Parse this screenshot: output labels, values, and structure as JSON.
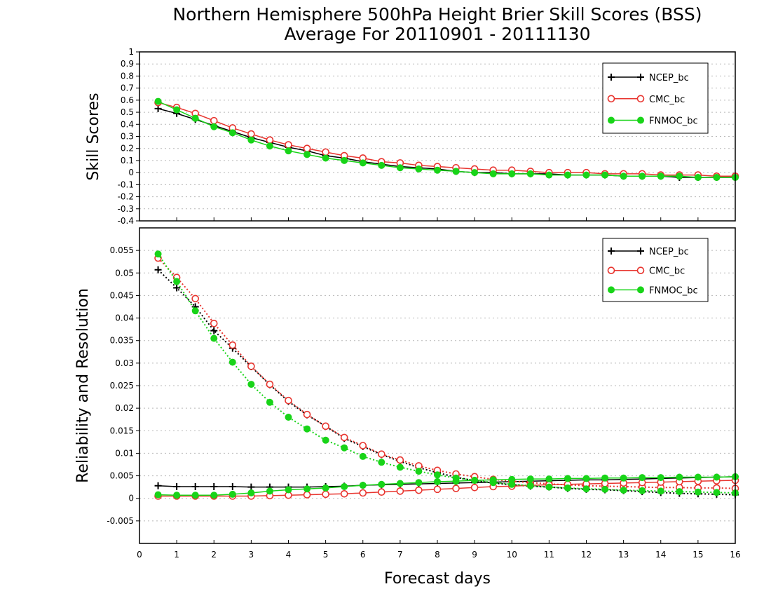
{
  "title": {
    "line1": "Northern Hemisphere 500hPa Height Brier Skill Scores (BSS)",
    "line2": "Average For 20110901 - 20111130"
  },
  "colors": {
    "NCEP_bc": "#000000",
    "CMC_bc": "#e8352f",
    "FNMOC_bc": "#18d418",
    "grid": "#b8b8b8"
  },
  "chart_data": [
    {
      "type": "line",
      "panel": "top",
      "ylabel": "Skill Scores",
      "xlabel": "",
      "xlim": [
        0,
        16
      ],
      "ylim": [
        -0.4,
        1
      ],
      "yticks": [
        -0.4,
        -0.3,
        -0.2,
        -0.1,
        0,
        0.1,
        0.2,
        0.3,
        0.4,
        0.5,
        0.6,
        0.7,
        0.8,
        0.9,
        1
      ],
      "ytick_labels": [
        "-0.4",
        "-0.3",
        "-0.2",
        "-0.1",
        "0",
        "0.1",
        "0.2",
        "0.3",
        "0.4",
        "0.5",
        "0.6",
        "0.7",
        "0.8",
        "0.9",
        "1"
      ],
      "grid": true,
      "legend_position": "top-right",
      "x": [
        0.5,
        1,
        1.5,
        2,
        2.5,
        3,
        3.5,
        4,
        4.5,
        5,
        5.5,
        6,
        6.5,
        7,
        7.5,
        8,
        8.5,
        9,
        9.5,
        10,
        10.5,
        11,
        11.5,
        12,
        12.5,
        13,
        13.5,
        14,
        14.5,
        15,
        15.5,
        16
      ],
      "series": [
        {
          "name": "NCEP_bc",
          "marker": "plus",
          "linestyle": "solid",
          "values": [
            0.53,
            0.49,
            0.44,
            0.39,
            0.34,
            0.29,
            0.25,
            0.21,
            0.18,
            0.14,
            0.12,
            0.09,
            0.07,
            0.05,
            0.04,
            0.03,
            0.01,
            0.0,
            0.0,
            -0.01,
            -0.01,
            -0.01,
            -0.02,
            -0.02,
            -0.02,
            -0.03,
            -0.03,
            -0.03,
            -0.04,
            -0.04,
            -0.04,
            -0.04
          ]
        },
        {
          "name": "CMC_bc",
          "marker": "open-circle",
          "linestyle": "solid",
          "values": [
            0.58,
            0.54,
            0.49,
            0.43,
            0.37,
            0.32,
            0.27,
            0.23,
            0.2,
            0.17,
            0.14,
            0.12,
            0.09,
            0.08,
            0.06,
            0.05,
            0.04,
            0.03,
            0.02,
            0.02,
            0.01,
            0.0,
            0.0,
            0.0,
            -0.01,
            -0.01,
            -0.01,
            -0.02,
            -0.02,
            -0.02,
            -0.03,
            -0.03
          ]
        },
        {
          "name": "FNMOC_bc",
          "marker": "filled-circle",
          "linestyle": "solid",
          "values": [
            0.59,
            0.52,
            0.45,
            0.38,
            0.33,
            0.27,
            0.22,
            0.18,
            0.15,
            0.12,
            0.1,
            0.08,
            0.06,
            0.04,
            0.03,
            0.02,
            0.01,
            0.0,
            -0.01,
            -0.01,
            -0.01,
            -0.02,
            -0.02,
            -0.02,
            -0.02,
            -0.03,
            -0.03,
            -0.03,
            -0.03,
            -0.04,
            -0.04,
            -0.04
          ]
        }
      ]
    },
    {
      "type": "line",
      "panel": "bottom",
      "ylabel": "Reliability and Resolution",
      "xlabel": "Forecast days",
      "xlim": [
        0,
        16
      ],
      "ylim": [
        -0.01,
        0.06
      ],
      "yticks": [
        -0.005,
        0,
        0.005,
        0.01,
        0.015,
        0.02,
        0.025,
        0.03,
        0.035,
        0.04,
        0.045,
        0.05,
        0.055
      ],
      "ytick_labels": [
        "-0.005",
        "0",
        "0.005",
        "0.01",
        "0.015",
        "0.02",
        "0.025",
        "0.03",
        "0.035",
        "0.04",
        "0.045",
        "0.05",
        "0.055"
      ],
      "xticks": [
        0,
        1,
        2,
        3,
        4,
        5,
        6,
        7,
        8,
        9,
        10,
        11,
        12,
        13,
        14,
        15,
        16
      ],
      "xtick_labels": [
        "0",
        "1",
        "2",
        "3",
        "4",
        "5",
        "6",
        "7",
        "8",
        "9",
        "10",
        "11",
        "12",
        "13",
        "14",
        "15",
        "16"
      ],
      "grid": true,
      "legend_position": "top-right",
      "x": [
        0.5,
        1,
        1.5,
        2,
        2.5,
        3,
        3.5,
        4,
        4.5,
        5,
        5.5,
        6,
        6.5,
        7,
        7.5,
        8,
        8.5,
        9,
        9.5,
        10,
        10.5,
        11,
        11.5,
        12,
        12.5,
        13,
        13.5,
        14,
        14.5,
        15,
        15.5,
        16
      ],
      "series": [
        {
          "name": "NCEP_bc",
          "component": "resolution",
          "marker": "plus",
          "linestyle": "dotted",
          "values": [
            0.0507,
            0.0467,
            0.0425,
            0.0372,
            0.0333,
            0.0292,
            0.0252,
            0.0215,
            0.0185,
            0.016,
            0.0133,
            0.0115,
            0.0097,
            0.0082,
            0.0068,
            0.0057,
            0.0047,
            0.0039,
            0.0034,
            0.003,
            0.0027,
            0.0025,
            0.0022,
            0.002,
            0.0019,
            0.0017,
            0.0015,
            0.0013,
            0.0011,
            0.001,
            0.0009,
            0.0008
          ]
        },
        {
          "name": "NCEP_bc",
          "component": "reliability",
          "marker": "plus",
          "linestyle": "solid",
          "values": [
            0.0028,
            0.0026,
            0.0026,
            0.0026,
            0.0026,
            0.0025,
            0.0025,
            0.0025,
            0.0025,
            0.0026,
            0.0027,
            0.0029,
            0.003,
            0.0031,
            0.0032,
            0.0033,
            0.0034,
            0.0035,
            0.0036,
            0.0037,
            0.0038,
            0.0039,
            0.004,
            0.0041,
            0.0041,
            0.0042,
            0.0043,
            0.0044,
            0.0045,
            0.0046,
            0.0047,
            0.0048
          ]
        },
        {
          "name": "CMC_bc",
          "component": "resolution",
          "marker": "open-circle",
          "linestyle": "dotted",
          "values": [
            0.0533,
            0.049,
            0.0443,
            0.0388,
            0.034,
            0.0293,
            0.0253,
            0.0217,
            0.0186,
            0.016,
            0.0135,
            0.0117,
            0.0098,
            0.0085,
            0.0072,
            0.0062,
            0.0054,
            0.0048,
            0.0042,
            0.0038,
            0.0035,
            0.0032,
            0.003,
            0.0028,
            0.0027,
            0.0026,
            0.0025,
            0.0024,
            0.0024,
            0.0023,
            0.0023,
            0.0022
          ]
        },
        {
          "name": "CMC_bc",
          "component": "reliability",
          "marker": "open-circle",
          "linestyle": "solid",
          "values": [
            0.0005,
            0.0005,
            0.0005,
            0.0005,
            0.0005,
            0.0005,
            0.0006,
            0.0007,
            0.0008,
            0.0009,
            0.001,
            0.0012,
            0.0014,
            0.0016,
            0.0018,
            0.002,
            0.0022,
            0.0024,
            0.0026,
            0.0027,
            0.0029,
            0.003,
            0.0031,
            0.0032,
            0.0033,
            0.0034,
            0.0035,
            0.0036,
            0.0037,
            0.0038,
            0.0039,
            0.004
          ]
        },
        {
          "name": "FNMOC_bc",
          "component": "resolution",
          "marker": "filled-circle",
          "linestyle": "dotted",
          "values": [
            0.0542,
            0.0481,
            0.0416,
            0.0355,
            0.0302,
            0.0253,
            0.0213,
            0.018,
            0.0154,
            0.0129,
            0.0112,
            0.0093,
            0.008,
            0.0069,
            0.006,
            0.0052,
            0.0045,
            0.004,
            0.0035,
            0.0031,
            0.0028,
            0.0025,
            0.0023,
            0.0021,
            0.002,
            0.0018,
            0.0017,
            0.0016,
            0.0015,
            0.0014,
            0.0013,
            0.0012
          ]
        },
        {
          "name": "FNMOC_bc",
          "component": "reliability",
          "marker": "filled-circle",
          "linestyle": "solid",
          "values": [
            0.0008,
            0.0007,
            0.0007,
            0.0007,
            0.0009,
            0.0012,
            0.0016,
            0.0019,
            0.0021,
            0.0023,
            0.0026,
            0.0029,
            0.0031,
            0.0033,
            0.0035,
            0.0037,
            0.0038,
            0.004,
            0.0041,
            0.0042,
            0.0043,
            0.0043,
            0.0044,
            0.0044,
            0.0045,
            0.0045,
            0.0046,
            0.0046,
            0.0047,
            0.0047,
            0.0047,
            0.0048
          ]
        }
      ]
    }
  ]
}
